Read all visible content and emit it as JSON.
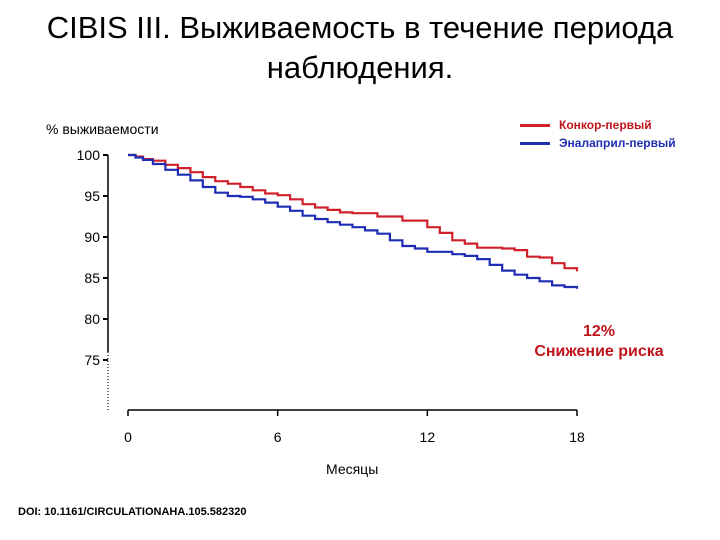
{
  "title": {
    "line1": "CIBIS III. Выживаемость в течение периода",
    "line2": "наблюдения."
  },
  "doi": "DOI: 10.1161/CIRCULATIONAHA.105.582320",
  "colors": {
    "red": "#d0202a",
    "blue": "#1f2db4",
    "annotation": "#c0141c"
  },
  "chart_data": {
    "type": "line",
    "title": "CIBIS III. Выживаемость в течение периода наблюдения.",
    "ylabel": "% выживаемости",
    "xlabel": "Месяцы",
    "xticks": [
      0,
      6,
      12,
      18
    ],
    "yticks": [
      100,
      95,
      90,
      85,
      80,
      75
    ],
    "xlim": [
      0,
      18
    ],
    "ylim": [
      75,
      100
    ],
    "legend_position": "top-right",
    "grid": false,
    "annotation": [
      "12%",
      "Снижение риска"
    ],
    "series": [
      {
        "name": "Конкор-первый",
        "color": "#d0202a",
        "x": [
          0,
          0.3,
          0.6,
          1.0,
          1.5,
          2.0,
          2.5,
          3.0,
          3.5,
          4.0,
          4.5,
          5.0,
          5.5,
          6.0,
          6.5,
          7.0,
          7.5,
          8.0,
          8.5,
          9.0,
          10.0,
          11.0,
          12.0,
          12.5,
          13.0,
          13.5,
          14.0,
          15.0,
          15.5,
          16.0,
          16.5,
          17.0,
          17.5,
          18.0
        ],
        "y": [
          100,
          99.8,
          99.5,
          99.3,
          98.8,
          98.4,
          97.9,
          97.3,
          96.8,
          96.5,
          96.1,
          95.7,
          95.3,
          95.1,
          94.6,
          94.0,
          93.6,
          93.3,
          93.0,
          92.9,
          92.5,
          92.0,
          91.2,
          90.5,
          89.6,
          89.2,
          88.7,
          88.6,
          88.4,
          87.6,
          87.5,
          86.8,
          86.2,
          85.8
        ]
      },
      {
        "name": "Эналаприл-первый",
        "color": "#1f2db4",
        "x": [
          0,
          0.3,
          0.6,
          1.0,
          1.5,
          2.0,
          2.5,
          3.0,
          3.5,
          4.0,
          4.5,
          5.0,
          5.5,
          6.0,
          6.5,
          7.0,
          7.5,
          8.0,
          8.5,
          9.0,
          9.5,
          10.0,
          10.5,
          11.0,
          11.5,
          12.0,
          13.0,
          13.5,
          14.0,
          14.5,
          15.0,
          15.5,
          16.0,
          16.5,
          17.0,
          17.5,
          18.0
        ],
        "y": [
          100,
          99.7,
          99.4,
          98.9,
          98.2,
          97.6,
          96.9,
          96.1,
          95.4,
          95.0,
          94.9,
          94.6,
          94.2,
          93.7,
          93.2,
          92.6,
          92.2,
          91.8,
          91.5,
          91.2,
          90.8,
          90.4,
          89.6,
          88.9,
          88.6,
          88.2,
          87.9,
          87.7,
          87.3,
          86.6,
          85.9,
          85.4,
          85.0,
          84.6,
          84.1,
          83.9,
          83.7
        ]
      }
    ]
  }
}
